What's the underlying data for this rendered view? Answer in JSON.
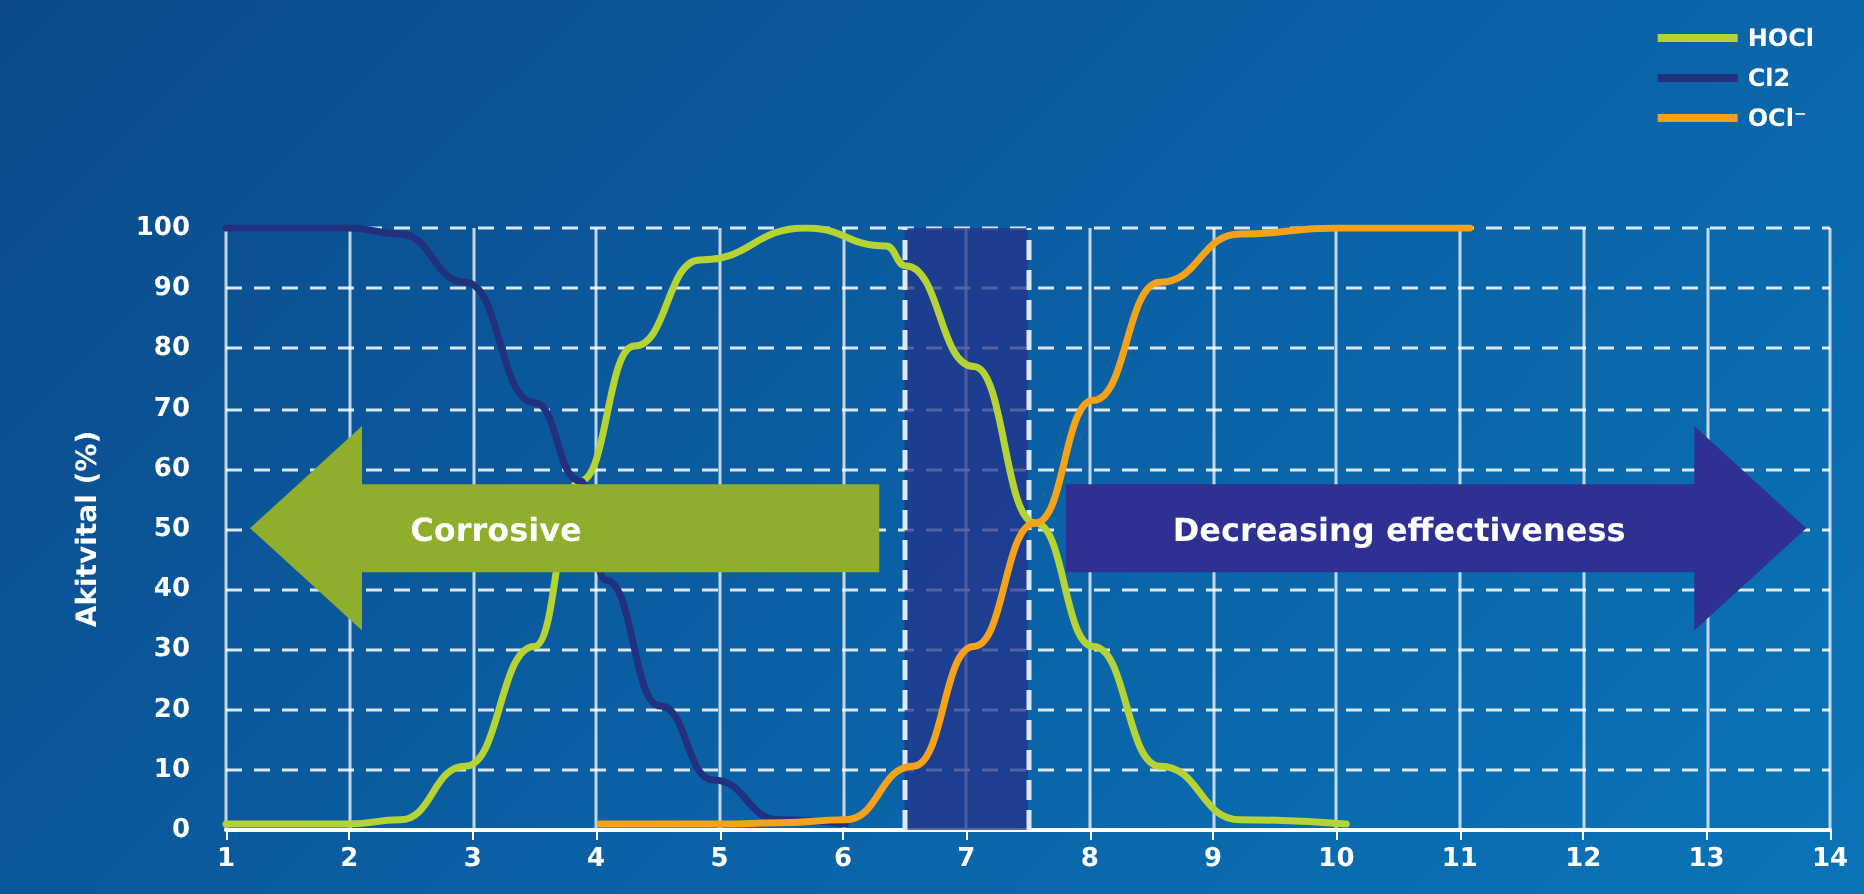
{
  "chart_data": {
    "type": "line",
    "ylabel": "Akitvital (%)",
    "xlim": [
      1,
      14
    ],
    "xticks": [
      1,
      2,
      3,
      4,
      5,
      6,
      7,
      8,
      9,
      10,
      11,
      12,
      13,
      14
    ],
    "ylim": [
      0,
      100
    ],
    "yticks": [
      0,
      10,
      20,
      30,
      40,
      50,
      60,
      70,
      80,
      90,
      100
    ],
    "grid": true,
    "legend": "top right",
    "marker": "none",
    "line_style": "solid",
    "series": [
      {
        "name": "HOCl",
        "color": "#b5d334",
        "x": [
          1,
          2,
          2.41,
          2.94,
          3.5,
          3.87,
          4.31,
          4.84,
          5.7,
          6.35,
          6.51,
          7.06,
          7.56,
          8.03,
          8.57,
          9.22,
          10.08
        ],
        "values": [
          1,
          1,
          1.7,
          10.6,
          30.5,
          58,
          80.4,
          94.7,
          100,
          97,
          93.7,
          77,
          51,
          30.5,
          10.6,
          1.7,
          1
        ]
      },
      {
        "name": "Cl2",
        "color": "#22317e",
        "x": [
          1,
          2,
          2.41,
          2.94,
          3.5,
          3.87,
          4.08,
          4.52,
          4.95,
          5.49,
          6.02
        ],
        "values": [
          100,
          100,
          99,
          91,
          71,
          58,
          41.5,
          20.6,
          8.3,
          1.7,
          1
        ]
      },
      {
        "name": "OCl⁻",
        "color": "#f5a21b",
        "x": [
          4.03,
          5,
          5.5,
          6.02,
          6.57,
          7.06,
          7.56,
          8.03,
          8.57,
          9.22,
          10,
          11.08
        ],
        "values": [
          1,
          1,
          1.2,
          1.7,
          10.6,
          30.5,
          51,
          71.4,
          91,
          99,
          100,
          100
        ]
      }
    ],
    "bands": [
      {
        "axis": "x",
        "from": 6.5,
        "to": 7.5,
        "color": "#24338a"
      }
    ],
    "ref_lines": [
      {
        "axis": "x",
        "value": 6.5,
        "line_style": "dashed",
        "color": "#dde8f5"
      },
      {
        "axis": "x",
        "value": 7.5,
        "line_style": "dashed",
        "color": "#dde8f5"
      }
    ],
    "annotations": [
      "Corrosive",
      "Decreasing effectiveness"
    ]
  }
}
